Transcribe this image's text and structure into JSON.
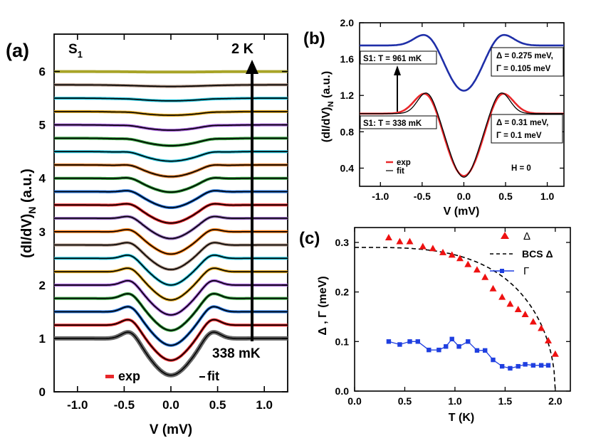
{
  "panels": {
    "a": {
      "tag": "(a)",
      "sample": "S",
      "sample_sub": "1",
      "top_label": "2 K",
      "bottom_label": "338 mK",
      "legend_exp": "exp",
      "legend_fit": "fit",
      "ylabel": "(dI/dV)",
      "ylabel_sub": "N",
      "ylabel_unit": " (a.u.)",
      "xlabel": "V (mV)"
    },
    "b": {
      "tag": "(b)",
      "ylabel": "(dI/dV)",
      "ylabel_sub": "N",
      "ylabel_unit": " (a.u.)",
      "xlabel": "V (mV)",
      "box1_left": "S1: T = 961 mK",
      "box1_right_delta": "Δ = 0.275 meV,",
      "box1_right_gamma": "Γ = 0.105 meV",
      "box2_left": "S1: T = 338 mK",
      "box2_right_delta": "Δ = 0.31 meV,",
      "box2_right_gamma": "Γ = 0.1 meV",
      "legend_exp": "exp",
      "legend_fit": "fit",
      "field_label": "H = 0"
    },
    "c": {
      "tag": "(c)",
      "ylabel": "Δ , Γ (meV)",
      "xlabel": "T (K)",
      "legend_delta": "Δ",
      "legend_bcs": "BCS Δ",
      "legend_gamma": "Γ"
    }
  },
  "colors": {
    "exp_red": "#e8272a",
    "fit_black": "#000000",
    "curve_blue": "#1f2fa8",
    "gamma_blue": "#1f3fe0",
    "delta_red": "#ee1111",
    "top_olive": "#a8a428"
  },
  "chart_data": [
    {
      "type": "line",
      "panel": "a",
      "title": "",
      "xlabel": "V (mV)",
      "ylabel": "(dI/dV)N (a.u.)",
      "xlim": [
        -1.25,
        1.25
      ],
      "ylim": [
        0,
        6.7
      ],
      "xticks": [
        -1.0,
        -0.5,
        0.0,
        0.5,
        1.0
      ],
      "xtick_labels": [
        "-1.0",
        "-0.5",
        "0.0",
        "0.5",
        "1.0"
      ],
      "yticks": [
        0,
        1,
        2,
        3,
        4,
        5,
        6
      ],
      "ytick_labels": [
        "0",
        "1",
        "2",
        "3",
        "4",
        "5",
        "6"
      ],
      "series_offset_step": 0.25,
      "series": [
        {
          "offset": 1.0,
          "color": "#666666",
          "depth": 0.69,
          "peak": 0.19,
          "width": 0.21
        },
        {
          "offset": 1.25,
          "color": "#e8272a",
          "depth": 0.66,
          "peak": 0.17,
          "width": 0.21
        },
        {
          "offset": 1.5,
          "color": "#1f6fd6",
          "depth": 0.63,
          "peak": 0.16,
          "width": 0.21
        },
        {
          "offset": 1.75,
          "color": "#2f9a3a",
          "depth": 0.6,
          "peak": 0.15,
          "width": 0.21
        },
        {
          "offset": 2.0,
          "color": "#a25ad8",
          "depth": 0.56,
          "peak": 0.14,
          "width": 0.21
        },
        {
          "offset": 2.25,
          "color": "#e0a51a",
          "depth": 0.53,
          "peak": 0.12,
          "width": 0.21
        },
        {
          "offset": 2.5,
          "color": "#22c0d8",
          "depth": 0.5,
          "peak": 0.11,
          "width": 0.21
        },
        {
          "offset": 2.75,
          "color": "#a58a7a",
          "depth": 0.46,
          "peak": 0.1,
          "width": 0.22
        },
        {
          "offset": 3.0,
          "color": "#ff7f0e",
          "depth": 0.42,
          "peak": 0.09,
          "width": 0.22
        },
        {
          "offset": 3.25,
          "color": "#9467bd",
          "depth": 0.38,
          "peak": 0.08,
          "width": 0.22
        },
        {
          "offset": 3.5,
          "color": "#e8272a",
          "depth": 0.34,
          "peak": 0.07,
          "width": 0.23
        },
        {
          "offset": 3.75,
          "color": "#1f6fd6",
          "depth": 0.3,
          "peak": 0.06,
          "width": 0.23
        },
        {
          "offset": 4.0,
          "color": "#2f9a3a",
          "depth": 0.26,
          "peak": 0.05,
          "width": 0.24
        },
        {
          "offset": 4.25,
          "color": "#d97a2a",
          "depth": 0.22,
          "peak": 0.04,
          "width": 0.25
        },
        {
          "offset": 4.5,
          "color": "#22c0d8",
          "depth": 0.18,
          "peak": 0.03,
          "width": 0.26
        },
        {
          "offset": 4.75,
          "color": "#2f9a3a",
          "depth": 0.14,
          "peak": 0.02,
          "width": 0.27
        },
        {
          "offset": 5.0,
          "color": "#a25ad8",
          "depth": 0.1,
          "peak": 0.015,
          "width": 0.28
        },
        {
          "offset": 5.25,
          "color": "#e0a51a",
          "depth": 0.07,
          "peak": 0.01,
          "width": 0.3
        },
        {
          "offset": 5.5,
          "color": "#22c0d8",
          "depth": 0.05,
          "peak": 0.005,
          "width": 0.32
        },
        {
          "offset": 5.75,
          "color": "#a58a7a",
          "depth": 0.03,
          "peak": 0.0,
          "width": 0.35
        },
        {
          "offset": 6.0,
          "color": "#a8a428",
          "depth": 0.01,
          "peak": 0.0,
          "width": 0.4
        }
      ]
    },
    {
      "type": "line",
      "panel": "b",
      "xlabel": "V (mV)",
      "ylabel": "(dI/dV)N (a.u.)",
      "xlim": [
        -1.25,
        1.2
      ],
      "ylim": [
        0.2,
        2.0
      ],
      "xticks": [
        -1.0,
        -0.5,
        0.0,
        0.5,
        1.0
      ],
      "xtick_labels": [
        "-1.0",
        "-0.5",
        "0.0",
        "0.5",
        "1.0"
      ],
      "yticks": [
        0.4,
        0.8,
        1.2,
        1.6,
        2.0
      ],
      "ytick_labels": [
        "0.4",
        "0.8",
        "1.2",
        "1.6",
        "2.0"
      ],
      "series": [
        {
          "name": "961 mK exp",
          "baseline": 1.75,
          "min": 1.25,
          "peak_value": 1.85,
          "color": "#1f2fa8"
        },
        {
          "name": "338 mK exp",
          "baseline": 1.0,
          "min": 0.31,
          "peak_value": 1.2,
          "color": "#e8272a"
        },
        {
          "name": "338 mK fit",
          "baseline": 1.0,
          "min": 0.3,
          "peak_value": 1.22,
          "color": "#000000"
        }
      ]
    },
    {
      "type": "scatter",
      "panel": "c",
      "xlabel": "T (K)",
      "ylabel": "Δ , Γ (meV)",
      "xlim": [
        0.0,
        2.15
      ],
      "ylim": [
        0.0,
        0.33
      ],
      "xticks": [
        0.0,
        0.5,
        1.0,
        1.5,
        2.0
      ],
      "xtick_labels": [
        "0.0",
        "0.5",
        "1.0",
        "1.5",
        "2.0"
      ],
      "yticks": [
        0.0,
        0.1,
        0.2,
        0.3
      ],
      "ytick_labels": [
        "0.0",
        "0.1",
        "0.2",
        "0.3"
      ],
      "series": [
        {
          "name": "Δ",
          "marker": "triangle",
          "color": "#ee1111",
          "x": [
            0.34,
            0.45,
            0.55,
            0.68,
            0.78,
            0.88,
            0.97,
            1.05,
            1.13,
            1.22,
            1.3,
            1.38,
            1.47,
            1.55,
            1.63,
            1.7,
            1.78,
            1.86,
            1.93,
            2.0
          ],
          "y": [
            0.31,
            0.302,
            0.302,
            0.292,
            0.288,
            0.28,
            0.275,
            0.268,
            0.256,
            0.245,
            0.23,
            0.207,
            0.19,
            0.176,
            0.165,
            0.155,
            0.14,
            0.127,
            0.102,
            0.075
          ]
        },
        {
          "name": "Γ",
          "marker": "square",
          "color": "#1f3fe0",
          "x": [
            0.34,
            0.45,
            0.55,
            0.63,
            0.74,
            0.84,
            0.91,
            0.97,
            1.04,
            1.13,
            1.22,
            1.3,
            1.38,
            1.47,
            1.55,
            1.63,
            1.7,
            1.78,
            1.86,
            1.93
          ],
          "y": [
            0.1,
            0.094,
            0.1,
            0.1,
            0.083,
            0.083,
            0.09,
            0.105,
            0.09,
            0.1,
            0.082,
            0.082,
            0.063,
            0.05,
            0.046,
            0.05,
            0.054,
            0.052,
            0.052,
            0.052
          ]
        },
        {
          "name": "BCS Δ",
          "marker": "none",
          "style": "dashed",
          "color": "#000000",
          "gap0": 0.29,
          "tc": 2.0
        }
      ]
    }
  ]
}
